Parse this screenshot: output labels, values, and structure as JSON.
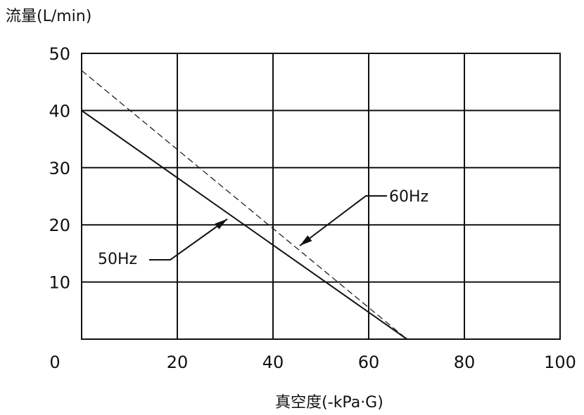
{
  "chart_data": {
    "type": "line",
    "ylabel": "流量(L/min)",
    "xlabel": "真空度(-kPa·G)",
    "xlim": [
      0,
      100
    ],
    "ylim": [
      0,
      50
    ],
    "x_ticks": [
      "0",
      "20",
      "40",
      "60",
      "80",
      "100"
    ],
    "y_ticks": [
      "10",
      "20",
      "30",
      "40",
      "50"
    ],
    "grid": true,
    "series": [
      {
        "name": "50Hz",
        "style": "solid",
        "color": "#111111",
        "x": [
          0,
          68
        ],
        "y": [
          40,
          0
        ]
      },
      {
        "name": "60Hz",
        "style": "dashed",
        "color": "#111111",
        "x": [
          0,
          68
        ],
        "y": [
          47,
          0
        ]
      }
    ]
  }
}
